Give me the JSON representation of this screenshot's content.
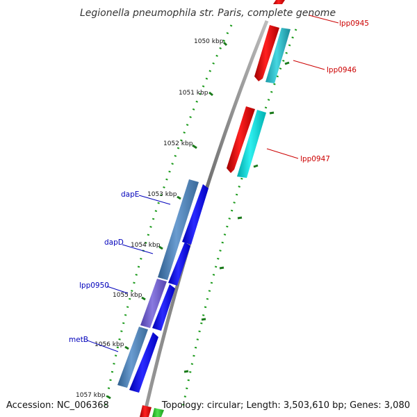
{
  "title": "Legionella pneumophila str. Paris, complete genome",
  "footer": {
    "accession": "Accession: NC_006368",
    "summary": "Topology: circular; Length: 3,503,610 bp; Genes: 3,080"
  },
  "colors": {
    "backbone": "#8c8c8c",
    "tick_green": "#1a7a1a",
    "forward_label": "#cc0000",
    "reverse_label": "#0000bb"
  },
  "ticks": [
    {
      "label": "1050 kbp"
    },
    {
      "label": "1051 kbp"
    },
    {
      "label": "1052 kbp"
    },
    {
      "label": "1053 kbp"
    },
    {
      "label": "1054 kbp"
    },
    {
      "label": "1055 kbp"
    },
    {
      "label": "1056 kbp"
    },
    {
      "label": "1057 kbp"
    }
  ],
  "genes": [
    {
      "label": "lpp0945",
      "strand": "forward"
    },
    {
      "label": "lpp0946",
      "strand": "forward"
    },
    {
      "label": "lpp0947",
      "strand": "forward"
    },
    {
      "label": "dapE",
      "strand": "reverse"
    },
    {
      "label": "dapD",
      "strand": "reverse"
    },
    {
      "label": "lpp0950",
      "strand": "reverse"
    },
    {
      "label": "metB",
      "strand": "reverse"
    }
  ]
}
